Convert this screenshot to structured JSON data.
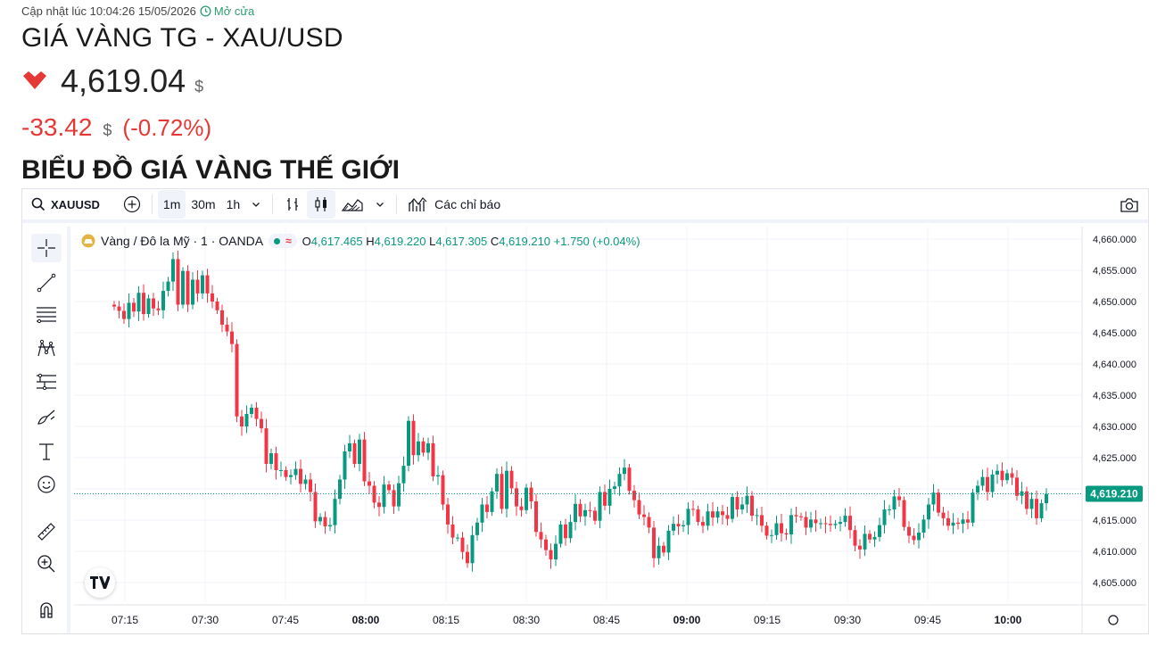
{
  "header": {
    "updated": "Cập nhật lúc 10:04:26 15/05/2026",
    "status": "Mở cửa",
    "title": "GIÁ VÀNG TG - XAU/USD",
    "price": "4,619.04",
    "price_unit": "$",
    "change": "-33.42",
    "change_unit": "$",
    "change_pct": "(-0.72%)",
    "section_title": "BIỂU ĐỒ GIÁ VÀNG THẾ GIỚI"
  },
  "toolbar": {
    "symbol": "XAUUSD",
    "intervals": [
      "1m",
      "30m",
      "1h"
    ],
    "active_interval": "1m",
    "indicators": "Các chỉ báo"
  },
  "legend": {
    "name": "Vàng / Đô la Mỹ · 1 · OANDA",
    "o_label": "O",
    "o": "4,617.465",
    "h_label": "H",
    "h": "4,619.220",
    "l_label": "L",
    "l": "4,617.305",
    "c_label": "C",
    "c": "4,619.210",
    "chg": "+1.750 (+0.04%)"
  },
  "colors": {
    "up": "#089981",
    "down": "#f23645",
    "accent": "#2962ff",
    "change": "#e53935"
  },
  "chart_data": {
    "type": "candlestick",
    "y_ticks": [
      "4,660.000",
      "4,655.000",
      "4,650.000",
      "4,645.000",
      "4,640.000",
      "4,635.000",
      "4,630.000",
      "4,625.000",
      "4,620.000",
      "4,615.000",
      "4,610.000",
      "4,605.000"
    ],
    "x_ticks": [
      "07:15",
      "07:30",
      "07:45",
      "08:00",
      "08:15",
      "08:30",
      "08:45",
      "09:00",
      "09:15",
      "09:30",
      "09:45",
      "10:00"
    ],
    "bold_ticks": [
      "08:00",
      "09:00",
      "10:00"
    ],
    "ylim": [
      4602,
      4662
    ],
    "last_price": "4,619.210",
    "last_value": 4619.21,
    "closes": [
      4649.2,
      4648.5,
      4647.2,
      4649.8,
      4648.4,
      4651.4,
      4648.0,
      4650.5,
      4648.9,
      4648.6,
      4651.7,
      4653.2,
      4656.8,
      4649.5,
      4654.9,
      4649.5,
      4653.5,
      4651.3,
      4654.2,
      4651.3,
      4650.0,
      4648.6,
      4646.3,
      4645.2,
      4643.2,
      4631.6,
      4630.0,
      4632.0,
      4633.0,
      4631.2,
      4629.7,
      4624.0,
      4625.7,
      4623.0,
      4623.0,
      4621.9,
      4622.2,
      4623.2,
      4620.8,
      4621.5,
      4619.5,
      4614.8,
      4615.5,
      4614.0,
      4614.2,
      4618.4,
      4621.5,
      4626.0,
      4627.3,
      4624.0,
      4627.9,
      4621.2,
      4620.5,
      4617.8,
      4617.1,
      4620.7,
      4619.8,
      4617.2,
      4620.9,
      4623.7,
      4630.9,
      4625.4,
      4627.6,
      4625.8,
      4627.3,
      4622.0,
      4622.2,
      4617.5,
      4614.3,
      4612.2,
      4612.2,
      4609.9,
      4608.1,
      4612.6,
      4614.6,
      4617.5,
      4616.3,
      4619.6,
      4622.4,
      4616.8,
      4622.9,
      4620.1,
      4617.2,
      4616.6,
      4620.2,
      4618.0,
      4613.1,
      4611.9,
      4610.2,
      4608.7,
      4611.2,
      4614.3,
      4612.1,
      4614.7,
      4617.6,
      4615.6,
      4616.6,
      4616.5,
      4614.9,
      4619.5,
      4617.3,
      4620.0,
      4620.4,
      4622.4,
      4623.4,
      4619.7,
      4618.2,
      4615.9,
      4615.5,
      4613.8,
      4608.9,
      4610.9,
      4609.8,
      4613.3,
      4614.4,
      4614.0,
      4614.2,
      4616.8,
      4616.7,
      4614.7,
      4614.1,
      4616.4,
      4615.4,
      4616.4,
      4615.8,
      4615.2,
      4618.7,
      4616.7,
      4617.5,
      4618.9,
      4615.7,
      4615.8,
      4614.1,
      4612.5,
      4612.6,
      4614.5,
      4612.9,
      4612.7,
      4615.8,
      4615.6,
      4615.5,
      4613.8,
      4615.1,
      4614.5,
      4614.5,
      4614.4,
      4614.2,
      4614.4,
      4614.7,
      4615.7,
      4613.4,
      4610.9,
      4610.3,
      4612.8,
      4611.9,
      4612.3,
      4614.2,
      4616.7,
      4616.7,
      4618.8,
      4618.2,
      4613.9,
      4612.5,
      4611.8,
      4613.0,
      4615.1,
      4617.5,
      4619.4,
      4616.2,
      4615.3,
      4614.1,
      4614.6,
      4614.4,
      4615.1,
      4614.6,
      4619.4,
      4620.5,
      4621.9,
      4619.5,
      4622.3,
      4622.9,
      4621.4,
      4622.5,
      4621.8,
      4618.9,
      4619.6,
      4616.8,
      4618.4,
      4615.3,
      4617.7,
      4619.2
    ]
  }
}
